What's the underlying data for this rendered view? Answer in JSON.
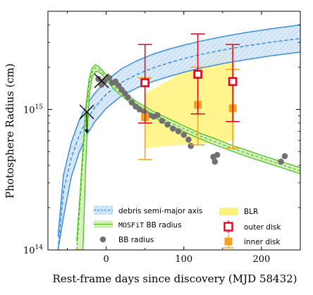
{
  "chart_data": {
    "type": "scatter",
    "xlabel": "Rest-frame days since discovery (MJD 58432)",
    "ylabel": "Photosphere Radius (cm)",
    "xlim": [
      -75,
      250
    ],
    "ylim": [
      100000000000000.0,
      5000000000000000.0
    ],
    "yscale": "log",
    "x_ticks": [
      0,
      100,
      200
    ],
    "y_ticks": [
      {
        "value": 100000000000000.0,
        "mantissa": "10",
        "exp": "14"
      },
      {
        "value": 1000000000000000.0,
        "mantissa": "10",
        "exp": "15"
      }
    ],
    "legend": {
      "debris": "debris semi-major axis",
      "mosfit_prefix": "MOSFiT",
      "mosfit_suffix": " BB radius",
      "bb": "BB radius",
      "blr": "BLR",
      "outer": "outer disk",
      "inner": "inner disk"
    },
    "debris_band": {
      "x": [
        -62,
        -55,
        -45,
        -35,
        -25,
        -15,
        0,
        20,
        40,
        60,
        80,
        100,
        120,
        150,
        180,
        210,
        240,
        250
      ],
      "center": [
        100000000000000.0,
        260000000000000.0,
        450000000000000.0,
        650000000000000.0,
        850000000000000.0,
        1030000000000000.0,
        1280000000000000.0,
        1560000000000000.0,
        1780000000000000.0,
        1970000000000000.0,
        2140000000000000.0,
        2300000000000000.0,
        2450000000000000.0,
        2650000000000000.0,
        2830000000000000.0,
        3000000000000000.0,
        3150000000000000.0,
        3200000000000000.0
      ],
      "upper": [
        125000000000000.0,
        340000000000000.0,
        580000000000000.0,
        830000000000000.0,
        1080000000000000.0,
        1300000000000000.0,
        1600000000000000.0,
        1950000000000000.0,
        2230000000000000.0,
        2470000000000000.0,
        2680000000000000.0,
        2870000000000000.0,
        3050000000000000.0,
        3300000000000000.0,
        3530000000000000.0,
        3740000000000000.0,
        3930000000000000.0,
        4000000000000000.0
      ],
      "lower": [
        100000000000000.0,
        170000000000000.0,
        330000000000000.0,
        490000000000000.0,
        660000000000000.0,
        810000000000000.0,
        1020000000000000.0,
        1250000000000000.0,
        1430000000000000.0,
        1580000000000000.0,
        1710000000000000.0,
        1840000000000000.0,
        1960000000000000.0,
        2120000000000000.0,
        2260000000000000.0,
        2400000000000000.0,
        2520000000000000.0,
        2560000000000000.0
      ]
    },
    "mosfit": {
      "x": [
        -38,
        -34,
        -30,
        -26,
        -22,
        -18,
        -14,
        -10,
        -5,
        0,
        10,
        20,
        30,
        40,
        60,
        80,
        100,
        120,
        140,
        160,
        180,
        200,
        220,
        250
      ],
      "center": [
        100000000000000.0,
        200000000000000.0,
        450000000000000.0,
        950000000000000.0,
        1500000000000000.0,
        1850000000000000.0,
        1980000000000000.0,
        1950000000000000.0,
        1830000000000000.0,
        1700000000000000.0,
        1450000000000000.0,
        1300000000000000.0,
        1180000000000000.0,
        1080000000000000.0,
        930000000000000.0,
        820000000000000.0,
        730000000000000.0,
        650000000000000.0,
        590000000000000.0,
        535000000000000.0,
        490000000000000.0,
        450000000000000.0,
        415000000000000.0,
        365000000000000.0
      ],
      "upper": [
        115000000000000.0,
        235000000000000.0,
        530000000000000.0,
        1080000000000000.0,
        1650000000000000.0,
        1980000000000000.0,
        2080000000000000.0,
        2030000000000000.0,
        1900000000000000.0,
        1770000000000000.0,
        1510000000000000.0,
        1350000000000000.0,
        1230000000000000.0,
        1130000000000000.0,
        975000000000000.0,
        860000000000000.0,
        765000000000000.0,
        680000000000000.0,
        620000000000000.0,
        560000000000000.0,
        515000000000000.0,
        472000000000000.0,
        435000000000000.0,
        385000000000000.0
      ],
      "lower": [
        100000000000000.0,
        100000000000000.0,
        100000000000000.0,
        450000000000000.0,
        1250000000000000.0,
        1700000000000000.0,
        1860000000000000.0,
        1860000000000000.0,
        1760000000000000.0,
        1630000000000000.0,
        1390000000000000.0,
        1250000000000000.0,
        1130000000000000.0,
        1030000000000000.0,
        885000000000000.0,
        780000000000000.0,
        695000000000000.0,
        620000000000000.0,
        560000000000000.0,
        510000000000000.0,
        465000000000000.0,
        428000000000000.0,
        395000000000000.0,
        348000000000000.0
      ]
    },
    "blr_band": {
      "x": [
        50,
        80,
        100,
        120,
        140,
        165
      ],
      "upper": [
        1300000000000000.0,
        1600000000000000.0,
        1900000000000000.0,
        2200000000000000.0,
        2600000000000000.0,
        3300000000000000.0
      ],
      "lower": [
        530000000000000.0,
        550000000000000.0,
        560000000000000.0,
        570000000000000.0,
        580000000000000.0,
        600000000000000.0
      ]
    },
    "bb_points": [
      {
        "x": -10,
        "y": 1650000000000000.0
      },
      {
        "x": -6,
        "y": 1500000000000000.0
      },
      {
        "x": -2,
        "y": 1600000000000000.0
      },
      {
        "x": 4,
        "y": 1680000000000000.0
      },
      {
        "x": 8,
        "y": 1550000000000000.0
      },
      {
        "x": 12,
        "y": 1580000000000000.0
      },
      {
        "x": 16,
        "y": 1480000000000000.0
      },
      {
        "x": 20,
        "y": 1380000000000000.0
      },
      {
        "x": 24,
        "y": 1300000000000000.0
      },
      {
        "x": 28,
        "y": 1220000000000000.0
      },
      {
        "x": 33,
        "y": 1120000000000000.0
      },
      {
        "x": 38,
        "y": 1050000000000000.0
      },
      {
        "x": 43,
        "y": 1000000000000000.0
      },
      {
        "x": 49,
        "y": 960000000000000.0
      },
      {
        "x": 55,
        "y": 910000000000000.0
      },
      {
        "x": 61,
        "y": 890000000000000.0
      },
      {
        "x": 66,
        "y": 910000000000000.0
      },
      {
        "x": 72,
        "y": 830000000000000.0
      },
      {
        "x": 79,
        "y": 780000000000000.0
      },
      {
        "x": 86,
        "y": 730000000000000.0
      },
      {
        "x": 93,
        "y": 700000000000000.0
      },
      {
        "x": 100,
        "y": 660000000000000.0
      },
      {
        "x": 106,
        "y": 610000000000000.0
      },
      {
        "x": 109,
        "y": 550000000000000.0
      },
      {
        "x": 138,
        "y": 460000000000000.0
      },
      {
        "x": 140,
        "y": 425000000000000.0
      },
      {
        "x": 143,
        "y": 475000000000000.0
      },
      {
        "x": 225,
        "y": 425000000000000.0
      },
      {
        "x": 230,
        "y": 465000000000000.0
      }
    ],
    "outer_disk": [
      {
        "x": 50,
        "y": 1550000000000000.0,
        "ylo": 800000000000000.0,
        "yhi": 2900000000000000.0
      },
      {
        "x": 118,
        "y": 1780000000000000.0,
        "ylo": 930000000000000.0,
        "yhi": 3450000000000000.0
      },
      {
        "x": 163,
        "y": 1580000000000000.0,
        "ylo": 820000000000000.0,
        "yhi": 2900000000000000.0
      }
    ],
    "inner_disk": [
      {
        "x": 50,
        "y": 880000000000000.0,
        "ylo": 440000000000000.0,
        "yhi": 1680000000000000.0
      },
      {
        "x": 118,
        "y": 1080000000000000.0,
        "ylo": 560000000000000.0,
        "yhi": 2000000000000000.0
      },
      {
        "x": 163,
        "y": 1020000000000000.0,
        "ylo": 530000000000000.0,
        "yhi": 1930000000000000.0
      }
    ],
    "cross_markers": [
      {
        "x": -6,
        "y": 1600000000000000.0,
        "arrow": false
      },
      {
        "x": -25,
        "y": 960000000000000.0,
        "arrow": true,
        "arrow_to": 680000000000000.0
      }
    ],
    "colors": {
      "debris_fill": "#d6e8f7",
      "debris_line": "#3a8ee0",
      "mosfit_fill": "#d4f0b8",
      "mosfit_line": "#4fbf1f",
      "blr": "#fff27a",
      "outer_disk": "#e8001c",
      "inner_disk": "#f5a21b",
      "bb": "#707070"
    }
  }
}
